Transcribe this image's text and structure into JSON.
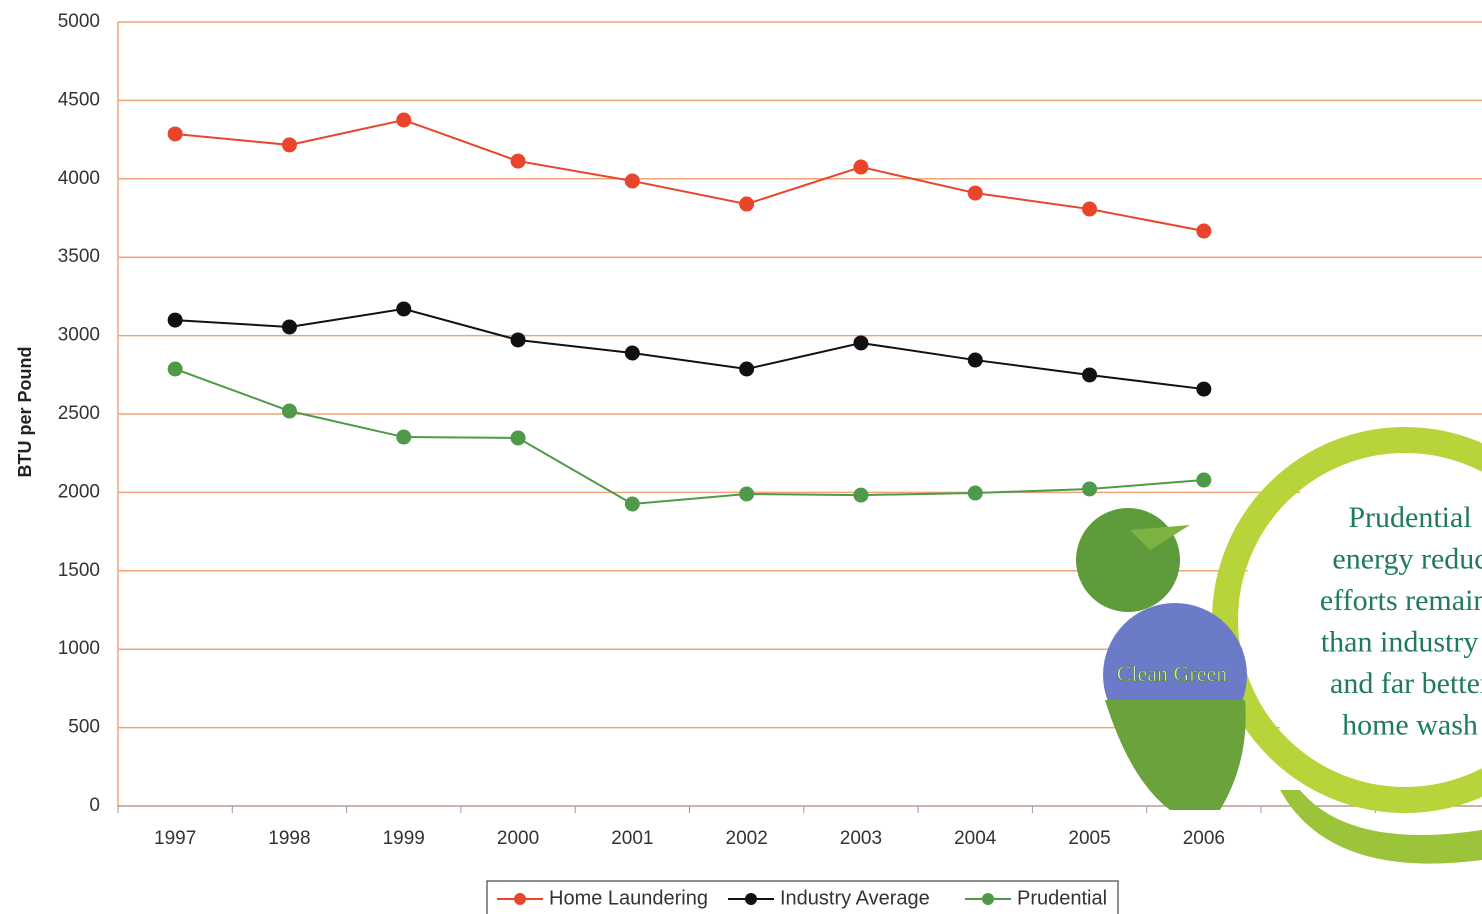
{
  "chart_data": {
    "type": "line",
    "y_label": "BTU per Pound",
    "categories": [
      "1997",
      "1998",
      "1999",
      "2000",
      "2001",
      "2002",
      "2003",
      "2004",
      "2005",
      "2006"
    ],
    "series": [
      {
        "name": "Home Laundering",
        "color": "#e8452b",
        "values": [
          4286,
          4216,
          4375,
          4113,
          3986,
          3839,
          4075,
          3909,
          3807,
          3667
        ]
      },
      {
        "name": "Industry Average",
        "color": "#111111",
        "values": [
          3099,
          3055,
          3170,
          2972,
          2889,
          2787,
          2953,
          2844,
          2749,
          2659
        ]
      },
      {
        "name": "Prudential",
        "color": "#4f9a4a",
        "values": [
          2787,
          2519,
          2353,
          2347,
          1926,
          1990,
          1983,
          1996,
          2022,
          2079
        ]
      }
    ],
    "ylim": [
      0,
      5000
    ],
    "yticks": [
      0,
      500,
      1000,
      1500,
      2000,
      2500,
      3000,
      3500,
      4000,
      4500,
      5000
    ],
    "grid": true,
    "annotation": [
      "Prudential",
      "energy reduc",
      "efforts remains",
      "than industry a",
      "and far better",
      "home wash"
    ],
    "logo_text": "Clean Green"
  }
}
